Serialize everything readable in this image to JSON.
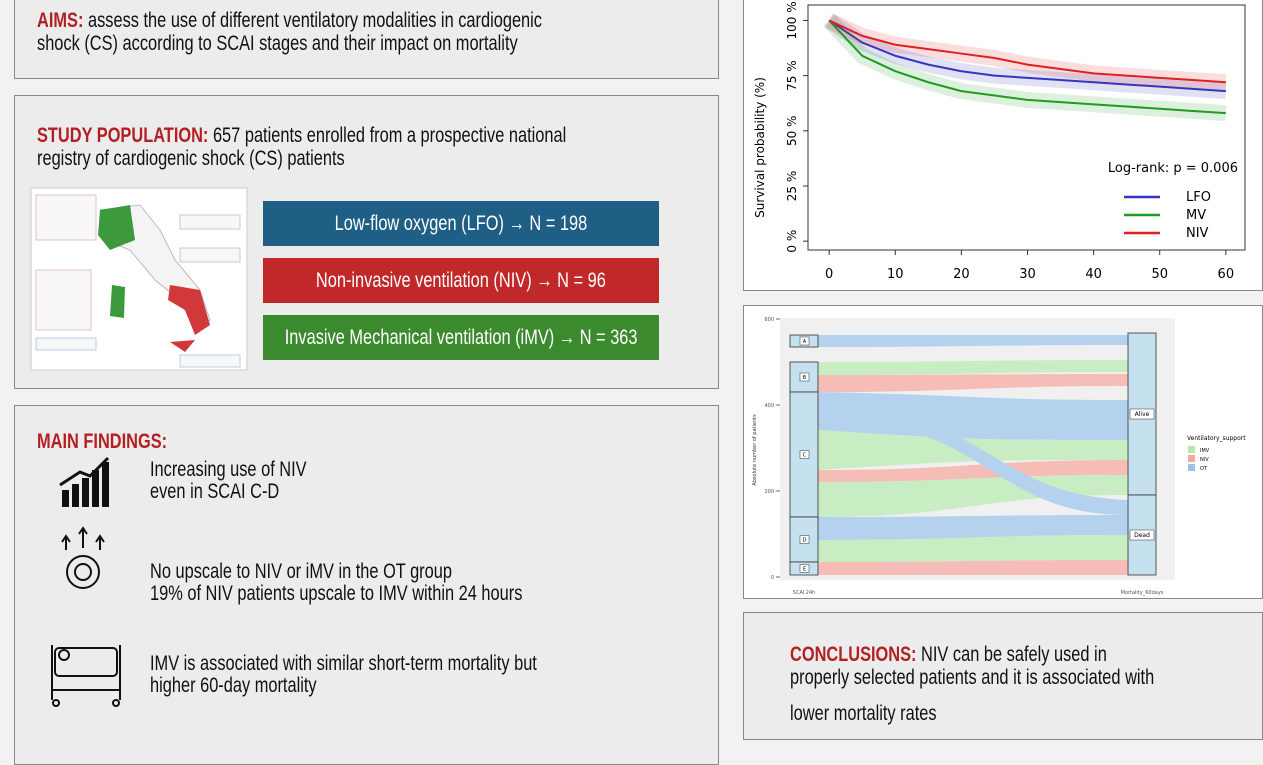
{
  "aims": {
    "label": "AIMS:",
    "lines": [
      "assess the use of different ventilatory modalities in cardiogenic",
      "shock (CS) according to SCAI stages and their impact on mortality"
    ]
  },
  "study": {
    "label": "STUDY POPULATION:",
    "lines": [
      "657 patients enrolled from a prospective national",
      "registry of  cardiogenic shock (CS) patients"
    ],
    "groups": [
      "Low-flow oxygen (LFO)  → N = 198",
      "Non-invasive ventilation (NIV) → N = 96",
      "Invasive Mechanical ventilation (iMV) → N = 363"
    ]
  },
  "findings": {
    "label": "MAIN FINDINGS:",
    "items": [
      {
        "lines": [
          "Increasing use of NIV",
          "even in SCAI C-D"
        ]
      },
      {
        "lines": [
          "No upscale to NIV or iMV in the OT group",
          "19% of NIV patients upscale to IMV within 24 hours"
        ]
      },
      {
        "lines": [
          "IMV is associated with similar short-term mortality but",
          "higher 60-day mortality"
        ]
      }
    ]
  },
  "conclusions": {
    "label": "CONCLUSIONS:",
    "lines": [
      "NIV can be safely used in",
      "properly selected patients and it is associated with",
      "lower mortality rates"
    ]
  },
  "chart_data": {
    "type": "line",
    "ylabel": "Survival probability (%)",
    "annotation": "Log-rank:  p = 0.006",
    "xlim": [
      -3.2,
      62.9
    ],
    "ylim": [
      -4,
      107
    ],
    "xticks": [
      0,
      10,
      20,
      30,
      40,
      50,
      60
    ],
    "yticks": [
      {
        "value": 0,
        "label": "0 %"
      },
      {
        "value": 25,
        "label": "25 %"
      },
      {
        "value": 50,
        "label": "50 %"
      },
      {
        "value": 75,
        "label": "75 %"
      },
      {
        "value": 100,
        "label": "100 %"
      }
    ],
    "x": [
      0,
      5,
      10,
      15,
      20,
      25,
      30,
      35,
      40,
      45,
      50,
      55,
      60
    ],
    "series": [
      {
        "name": "LFO",
        "color": "#3535c0",
        "values": [
          100,
          90,
          84,
          80,
          77,
          75,
          74,
          73,
          72,
          71,
          70,
          69,
          68
        ]
      },
      {
        "name": "MV",
        "color": "#1e9c1e",
        "values": [
          100,
          84,
          77,
          72,
          68,
          66,
          64,
          63,
          62,
          61,
          60,
          59,
          58
        ]
      },
      {
        "name": "NIV",
        "color": "#e02020",
        "values": [
          100,
          93,
          89,
          87,
          85,
          83,
          80,
          78,
          76,
          75,
          74,
          73,
          72
        ]
      }
    ]
  },
  "alluvial": {
    "ylabel": "Absolute number of patients",
    "ylim": [
      0,
      600
    ],
    "yticks": [
      0,
      200,
      400,
      600
    ],
    "stages": [
      "A",
      "B",
      "C",
      "D",
      "E"
    ],
    "outcomes": [
      "Alive",
      "Dead"
    ],
    "xlabels": [
      "SCAI 24h",
      "Mortality_60days"
    ],
    "legend_title": "Ventilatory_support",
    "legend": [
      "IMV",
      "NIV",
      "OT"
    ]
  }
}
